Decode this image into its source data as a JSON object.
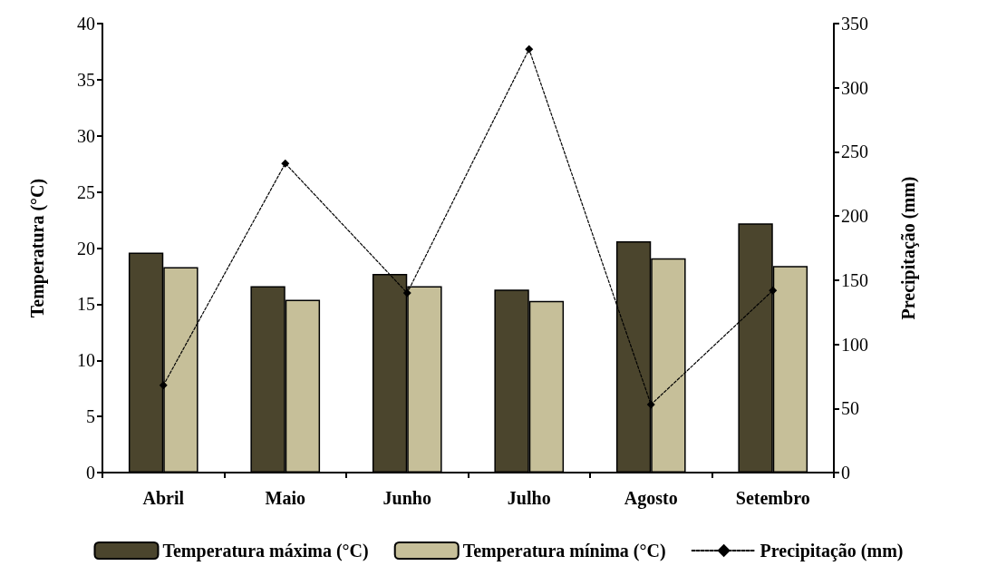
{
  "chart_data": {
    "type": "bar",
    "ylabel": "Temperatura (°C)",
    "y2label": "Precipitação (mm)",
    "categories": [
      "Abril",
      "Maio",
      "Junho",
      "Julho",
      "Agosto",
      "Setembro"
    ],
    "series": [
      {
        "name": "Temperatura máxima (°C)",
        "color": "#4b452d",
        "values": [
          19.6,
          16.6,
          17.7,
          16.3,
          20.6,
          22.2
        ]
      },
      {
        "name": "Temperatura mínima (°C)",
        "color": "#c6bf99",
        "values": [
          18.3,
          15.4,
          16.6,
          15.3,
          19.1,
          18.4
        ]
      },
      {
        "name": "Precipitação (mm)",
        "type": "line",
        "axis": "y2",
        "color": "#000000",
        "marker": "diamond",
        "line_style": "dashed",
        "values": [
          68,
          241,
          140,
          330,
          53,
          142
        ]
      }
    ],
    "ylim": [
      0,
      40
    ],
    "yticks": [
      0,
      5,
      10,
      15,
      20,
      25,
      30,
      35,
      40
    ],
    "y2lim": [
      0,
      350
    ],
    "y2ticks": [
      0,
      50,
      100,
      150,
      200,
      250,
      300,
      350
    ],
    "grid": false,
    "legend": "bottom"
  }
}
